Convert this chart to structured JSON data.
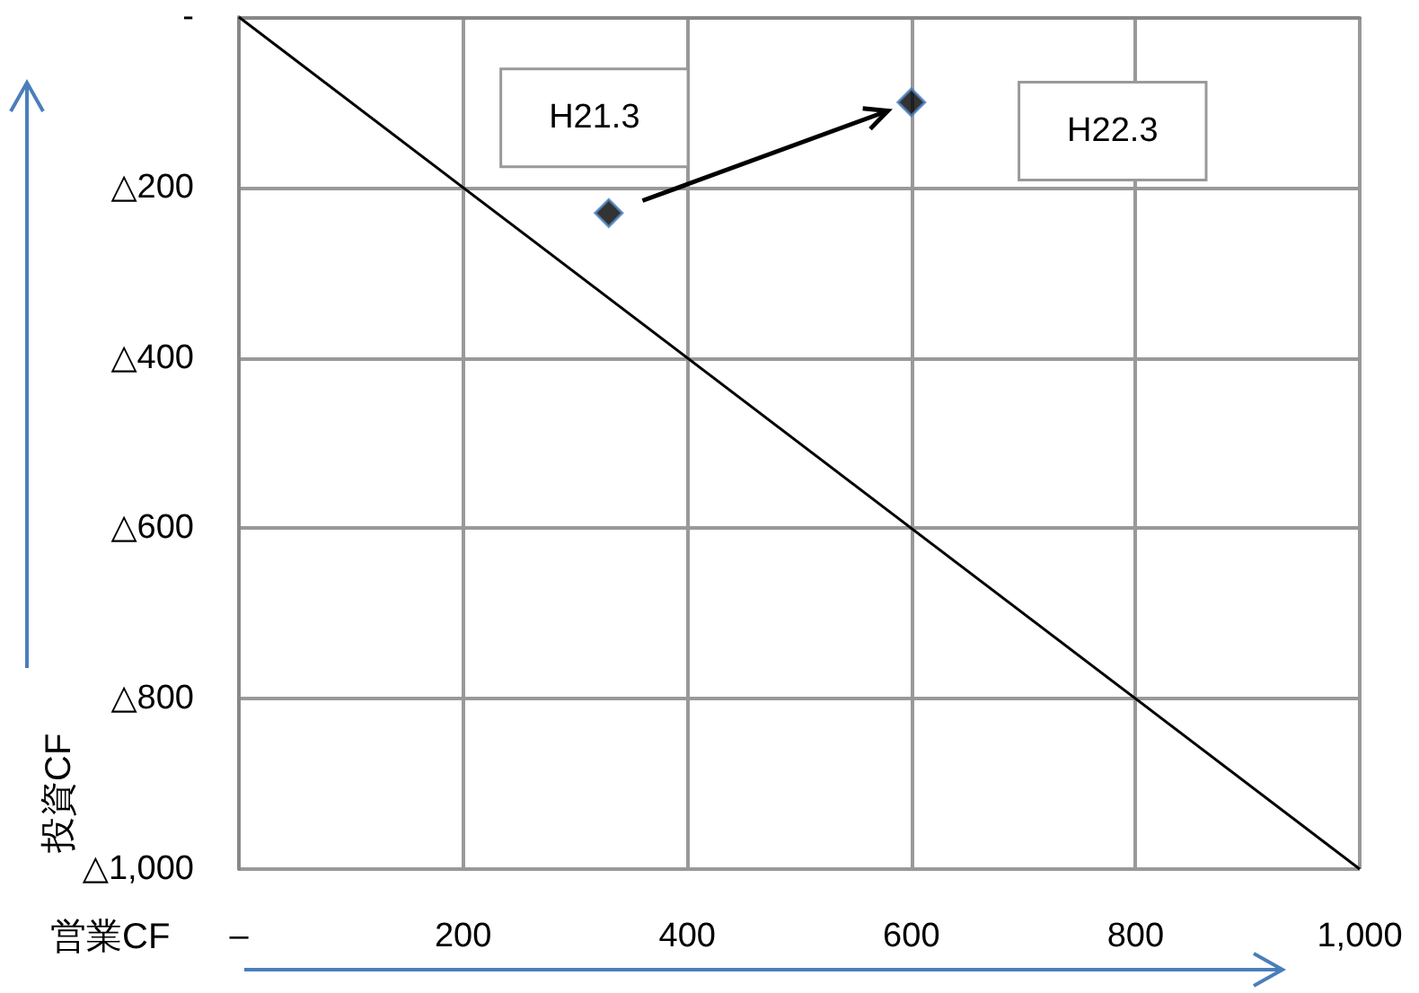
{
  "chart_data": {
    "type": "scatter",
    "xlabel": "営業CF",
    "ylabel": "投資CF",
    "xlim": [
      0,
      1000
    ],
    "ylim": [
      -1000,
      0
    ],
    "xticks": [
      {
        "value": 0,
        "label": "–"
      },
      200,
      400,
      600,
      800,
      {
        "value": 1000,
        "label": "1,000"
      }
    ],
    "yticks": [
      {
        "value": 0,
        "label": "-"
      },
      {
        "value": -200,
        "label": "△200"
      },
      {
        "value": -400,
        "label": "△400"
      },
      {
        "value": -600,
        "label": "△600"
      },
      {
        "value": -800,
        "label": "△800"
      },
      {
        "value": -1000,
        "label": "△1,000"
      }
    ],
    "grid": true,
    "series": [
      {
        "type": "line",
        "x": [
          0,
          1000
        ],
        "values": [
          0,
          -1000
        ],
        "color": "#000000",
        "marker": "none"
      },
      {
        "x": [
          330,
          600
        ],
        "values": [
          -230,
          -100
        ],
        "color": "#000000",
        "marker": "diamond"
      }
    ],
    "annotations": [
      "H21.3",
      "H22.3"
    ]
  }
}
